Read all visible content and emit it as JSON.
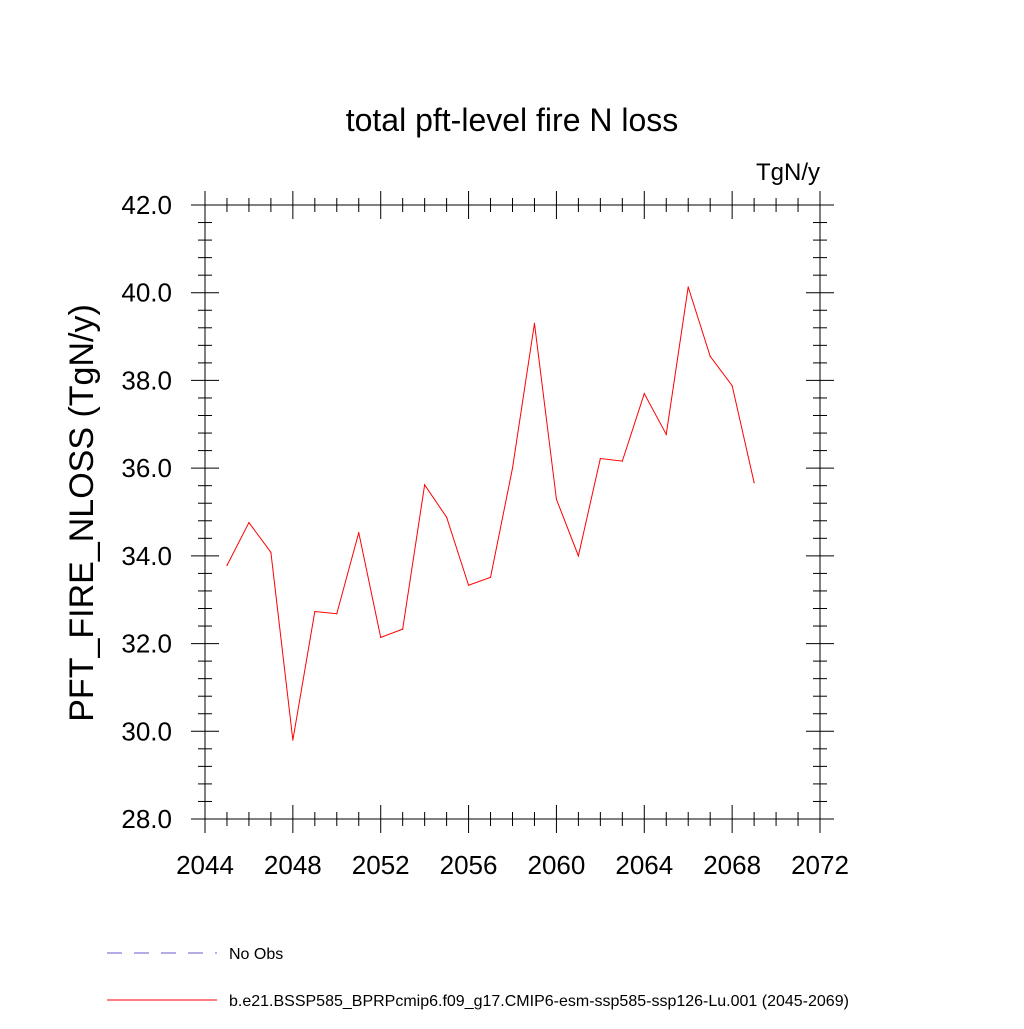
{
  "chart_data": {
    "type": "line",
    "title": "total pft-level fire N loss",
    "units_label": "TgN/y",
    "ylabel": "PFT_FIRE_NLOSS  (TgN/y)",
    "xlabel": "",
    "xlim": [
      2044,
      2072
    ],
    "ylim": [
      28.0,
      42.0
    ],
    "x_ticks": [
      "2044",
      "2048",
      "2052",
      "2056",
      "2060",
      "2064",
      "2068",
      "2072"
    ],
    "y_ticks": [
      "28.0",
      "30.0",
      "32.0",
      "34.0",
      "36.0",
      "38.0",
      "40.0",
      "42.0"
    ],
    "x_minor_step": 1,
    "y_minor_step": 0.4,
    "grid": false,
    "series": [
      {
        "name": "b.e21.BSSP585_BPRPcmip6.f09_g17.CMIP6-esm-ssp585-ssp126-Lu.001 (2045-2069)",
        "color": "#ff0000",
        "x": [
          2045,
          2046,
          2047,
          2048,
          2049,
          2050,
          2051,
          2052,
          2053,
          2054,
          2055,
          2056,
          2057,
          2058,
          2059,
          2060,
          2061,
          2062,
          2063,
          2064,
          2065,
          2066,
          2067,
          2068,
          2069
        ],
        "values": [
          33.78,
          34.76,
          34.08,
          29.8,
          32.73,
          32.68,
          34.53,
          32.14,
          32.33,
          35.62,
          34.88,
          33.33,
          33.51,
          36.0,
          39.3,
          35.29,
          34.0,
          36.22,
          36.16,
          37.7,
          36.77,
          40.13,
          38.55,
          37.88,
          35.67
        ]
      }
    ],
    "legend": [
      {
        "label": "No Obs",
        "style": "dashed",
        "color": "#6a5acd"
      },
      {
        "label": "b.e21.BSSP585_BPRPcmip6.f09_g17.CMIP6-esm-ssp585-ssp126-Lu.001 (2045-2069)",
        "style": "solid",
        "color": "#ff0000"
      }
    ],
    "legend_position": "bottom-left"
  }
}
